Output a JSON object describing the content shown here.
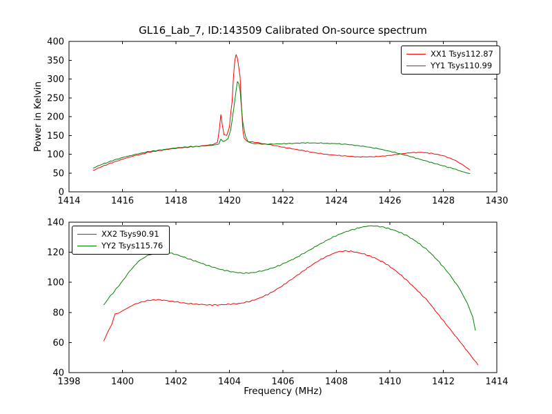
{
  "figure": {
    "background": "#ffffff",
    "text_color": "#000000"
  },
  "chart_data": [
    {
      "type": "line",
      "title": "GL16_Lab_7, ID:143509 Calibrated On-source spectrum",
      "xlabel": "",
      "ylabel": "Power in Kelvin",
      "xlim": [
        1414,
        1430
      ],
      "ylim": [
        0,
        400
      ],
      "xticks": [
        1414,
        1416,
        1418,
        1420,
        1422,
        1424,
        1426,
        1428,
        1430
      ],
      "yticks": [
        0,
        50,
        100,
        150,
        200,
        250,
        300,
        350,
        400
      ],
      "grid": false,
      "legend_position": "top-right",
      "series": [
        {
          "name": "XX1 Tsys112.87",
          "color": "#ff0000",
          "points": [
            [
              1414.9,
              57
            ],
            [
              1415.2,
              66
            ],
            [
              1415.5,
              75
            ],
            [
              1415.8,
              82
            ],
            [
              1416.1,
              89
            ],
            [
              1416.4,
              95
            ],
            [
              1416.7,
              100
            ],
            [
              1417.0,
              105
            ],
            [
              1417.3,
              109
            ],
            [
              1417.6,
              112
            ],
            [
              1417.9,
              115
            ],
            [
              1418.2,
              117
            ],
            [
              1418.5,
              119
            ],
            [
              1418.8,
              121
            ],
            [
              1419.1,
              123
            ],
            [
              1419.4,
              126
            ],
            [
              1419.55,
              131
            ],
            [
              1419.62,
              165
            ],
            [
              1419.68,
              205
            ],
            [
              1419.74,
              175
            ],
            [
              1419.8,
              152
            ],
            [
              1419.9,
              150
            ],
            [
              1420.0,
              172
            ],
            [
              1420.05,
              210
            ],
            [
              1420.1,
              240
            ],
            [
              1420.15,
              305
            ],
            [
              1420.2,
              350
            ],
            [
              1420.25,
              365
            ],
            [
              1420.3,
              355
            ],
            [
              1420.35,
              330
            ],
            [
              1420.4,
              305
            ],
            [
              1420.45,
              230
            ],
            [
              1420.5,
              165
            ],
            [
              1420.55,
              143
            ],
            [
              1420.65,
              135
            ],
            [
              1420.8,
              133
            ],
            [
              1421.0,
              131
            ],
            [
              1421.3,
              128
            ],
            [
              1421.6,
              124
            ],
            [
              1422.0,
              119
            ],
            [
              1422.4,
              114
            ],
            [
              1422.8,
              109
            ],
            [
              1423.2,
              104
            ],
            [
              1423.6,
              100
            ],
            [
              1424.0,
              97
            ],
            [
              1424.4,
              95
            ],
            [
              1424.8,
              93
            ],
            [
              1425.2,
              93
            ],
            [
              1425.6,
              94
            ],
            [
              1426.0,
              97
            ],
            [
              1426.4,
              101
            ],
            [
              1426.8,
              104
            ],
            [
              1427.2,
              105
            ],
            [
              1427.6,
              102
            ],
            [
              1428.0,
              96
            ],
            [
              1428.4,
              85
            ],
            [
              1428.7,
              73
            ],
            [
              1429.0,
              58
            ]
          ]
        },
        {
          "name": "YY1 Tsys110.99",
          "color": "#008000",
          "points": [
            [
              1414.9,
              63
            ],
            [
              1415.2,
              72
            ],
            [
              1415.5,
              80
            ],
            [
              1415.8,
              87
            ],
            [
              1416.1,
              93
            ],
            [
              1416.4,
              98
            ],
            [
              1416.7,
              103
            ],
            [
              1417.0,
              107
            ],
            [
              1417.3,
              110
            ],
            [
              1417.6,
              113
            ],
            [
              1417.9,
              116
            ],
            [
              1418.2,
              118
            ],
            [
              1418.5,
              120
            ],
            [
              1418.8,
              121
            ],
            [
              1419.1,
              122
            ],
            [
              1419.4,
              124
            ],
            [
              1419.6,
              127
            ],
            [
              1419.68,
              140
            ],
            [
              1419.76,
              134
            ],
            [
              1419.85,
              136
            ],
            [
              1419.95,
              142
            ],
            [
              1420.05,
              165
            ],
            [
              1420.15,
              215
            ],
            [
              1420.25,
              270
            ],
            [
              1420.3,
              293
            ],
            [
              1420.35,
              288
            ],
            [
              1420.4,
              268
            ],
            [
              1420.45,
              225
            ],
            [
              1420.5,
              185
            ],
            [
              1420.6,
              148
            ],
            [
              1420.7,
              133
            ],
            [
              1420.85,
              129
            ],
            [
              1421.0,
              128
            ],
            [
              1421.3,
              127
            ],
            [
              1421.6,
              127
            ],
            [
              1422.0,
              128
            ],
            [
              1422.4,
              129
            ],
            [
              1422.8,
              130
            ],
            [
              1423.2,
              130
            ],
            [
              1423.6,
              129
            ],
            [
              1424.0,
              128
            ],
            [
              1424.4,
              126
            ],
            [
              1424.8,
              123
            ],
            [
              1425.2,
              119
            ],
            [
              1425.6,
              114
            ],
            [
              1426.0,
              108
            ],
            [
              1426.4,
              101
            ],
            [
              1426.8,
              93
            ],
            [
              1427.2,
              85
            ],
            [
              1427.6,
              77
            ],
            [
              1428.0,
              69
            ],
            [
              1428.4,
              61
            ],
            [
              1428.7,
              54
            ],
            [
              1429.0,
              48
            ]
          ]
        }
      ]
    },
    {
      "type": "line",
      "title": "",
      "xlabel": "Frequency (MHz)",
      "ylabel": "",
      "xlim": [
        1398,
        1414
      ],
      "ylim": [
        40,
        140
      ],
      "xticks": [
        1398,
        1400,
        1402,
        1404,
        1406,
        1408,
        1410,
        1412,
        1414
      ],
      "yticks": [
        40,
        60,
        80,
        100,
        120,
        140
      ],
      "grid": false,
      "legend_position": "top-left",
      "series": [
        {
          "name": "XX2 Tsys90.91",
          "color": "#ff0000",
          "points": [
            [
              1399.3,
              61
            ],
            [
              1399.45,
              67
            ],
            [
              1399.6,
              72
            ],
            [
              1399.72,
              79
            ],
            [
              1399.85,
              79.5
            ],
            [
              1400.1,
              82
            ],
            [
              1400.4,
              85
            ],
            [
              1400.7,
              87
            ],
            [
              1401.0,
              88
            ],
            [
              1401.3,
              88.5
            ],
            [
              1401.6,
              88
            ],
            [
              1402.0,
              87
            ],
            [
              1402.4,
              86
            ],
            [
              1402.8,
              85.5
            ],
            [
              1403.2,
              85
            ],
            [
              1403.6,
              85
            ],
            [
              1404.0,
              85.5
            ],
            [
              1404.4,
              86
            ],
            [
              1404.8,
              87.5
            ],
            [
              1405.2,
              90
            ],
            [
              1405.6,
              93.5
            ],
            [
              1406.0,
              98
            ],
            [
              1406.4,
              103
            ],
            [
              1406.8,
              108
            ],
            [
              1407.2,
              113
            ],
            [
              1407.6,
              117
            ],
            [
              1408.0,
              120
            ],
            [
              1408.3,
              121
            ],
            [
              1408.6,
              120.5
            ],
            [
              1409.0,
              119
            ],
            [
              1409.4,
              116.5
            ],
            [
              1409.8,
              113
            ],
            [
              1410.2,
              108
            ],
            [
              1410.6,
              102
            ],
            [
              1411.0,
              95
            ],
            [
              1411.4,
              88
            ],
            [
              1411.8,
              79
            ],
            [
              1412.2,
              70
            ],
            [
              1412.6,
              61
            ],
            [
              1413.0,
              52
            ],
            [
              1413.3,
              45
            ]
          ]
        },
        {
          "name": "YY2 Tsys115.76",
          "color": "#008000",
          "points": [
            [
              1399.3,
              85
            ],
            [
              1399.5,
              90
            ],
            [
              1399.7,
              94
            ],
            [
              1400.0,
              101
            ],
            [
              1400.3,
              108
            ],
            [
              1400.6,
              114
            ],
            [
              1400.9,
              117.5
            ],
            [
              1401.2,
              119.5
            ],
            [
              1401.5,
              120
            ],
            [
              1401.8,
              119.5
            ],
            [
              1402.1,
              118
            ],
            [
              1402.5,
              115.5
            ],
            [
              1402.9,
              113
            ],
            [
              1403.3,
              110.5
            ],
            [
              1403.7,
              108.5
            ],
            [
              1404.1,
              107
            ],
            [
              1404.5,
              106
            ],
            [
              1404.9,
              106.5
            ],
            [
              1405.3,
              108
            ],
            [
              1405.7,
              110
            ],
            [
              1406.1,
              113
            ],
            [
              1406.5,
              116.5
            ],
            [
              1406.9,
              120.5
            ],
            [
              1407.3,
              124.5
            ],
            [
              1407.7,
              128.5
            ],
            [
              1408.1,
              132
            ],
            [
              1408.5,
              134.5
            ],
            [
              1408.9,
              136.5
            ],
            [
              1409.2,
              137.5
            ],
            [
              1409.5,
              137.5
            ],
            [
              1409.8,
              136.5
            ],
            [
              1410.2,
              134.5
            ],
            [
              1410.6,
              131.5
            ],
            [
              1411.0,
              127
            ],
            [
              1411.4,
              121.5
            ],
            [
              1411.8,
              114.5
            ],
            [
              1412.2,
              106
            ],
            [
              1412.6,
              96
            ],
            [
              1412.9,
              86
            ],
            [
              1413.1,
              77
            ],
            [
              1413.2,
              68
            ]
          ]
        }
      ]
    }
  ]
}
